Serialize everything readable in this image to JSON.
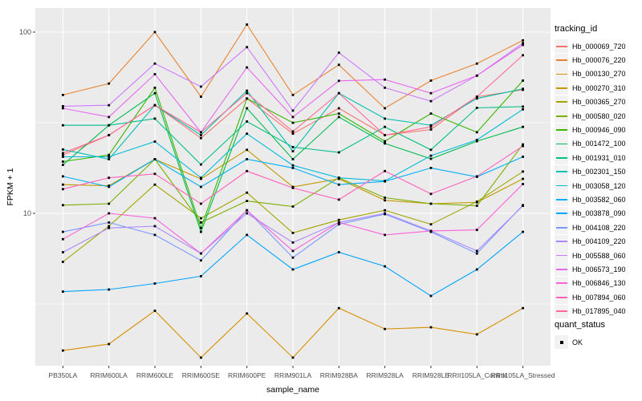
{
  "axes": {
    "y_tick_labels": [
      "100",
      "10"
    ],
    "x_title": "sample_name",
    "y_title": "FPKM + 1"
  },
  "legend": {
    "title": "tracking_id"
  },
  "legend2": {
    "title": "quant_status",
    "items": [
      {
        "label": "OK",
        "shape": "black-square"
      }
    ]
  },
  "chart_data": {
    "type": "line",
    "title": "",
    "xlabel": "sample_name",
    "ylabel": "FPKM + 1",
    "y_scale": "log10",
    "ylim": [
      1.4,
      135
    ],
    "y_major_ticks": [
      100,
      10
    ],
    "y_minor_ticks": [
      31.623,
      3.1623
    ],
    "grid": true,
    "panel_background": "#EBEBEB",
    "grid_color": "#FFFFFF",
    "point_shape": "filled-black-square",
    "legend_position": "right",
    "categories": [
      "PB350LA",
      "RRIM600LA",
      "RRIM600LE",
      "RRIM600SE",
      "RRIM600PE",
      "RRIM901LA",
      "RRIM928BA",
      "RRIM928LA",
      "RRIM928LE",
      "RRII105LA_Control",
      "RRII105LA_Stressed"
    ],
    "series": [
      {
        "name": "Hb_000069_720",
        "color": "#F8766D",
        "values": [
          21,
          27,
          39.5,
          26,
          43,
          27.5,
          38,
          27,
          29,
          44,
          48
        ]
      },
      {
        "name": "Hb_000076_220",
        "color": "#EA8331",
        "values": [
          45,
          52,
          100,
          44,
          110,
          45,
          66,
          38,
          54,
          67,
          90
        ]
      },
      {
        "name": "Hb_000130_270",
        "color": "#D89000",
        "values": [
          1.75,
          1.9,
          2.9,
          1.6,
          2.8,
          1.6,
          3,
          2.3,
          2.35,
          2.15,
          3
        ]
      },
      {
        "name": "Hb_000270_310",
        "color": "#C09B00",
        "values": [
          14.4,
          14.2,
          19.9,
          15.5,
          22.4,
          14,
          15.5,
          11.8,
          11.3,
          11.5,
          15.5
        ]
      },
      {
        "name": "Hb_000365_270",
        "color": "#A3A500",
        "values": [
          5.4,
          8.5,
          14.4,
          9.4,
          13,
          7.8,
          9.2,
          10.4,
          8.7,
          11.6,
          17
        ]
      },
      {
        "name": "Hb_000580_020",
        "color": "#7CAE00",
        "values": [
          11.1,
          11.3,
          19.9,
          8.9,
          11.7,
          10.9,
          15.7,
          12.2,
          11.3,
          11,
          24
        ]
      },
      {
        "name": "Hb_000946_090",
        "color": "#39B600",
        "values": [
          19.3,
          21,
          49.3,
          8.3,
          43,
          31.6,
          35.5,
          25,
          35.5,
          28,
          54
        ]
      },
      {
        "name": "Hb_001472_100",
        "color": "#00BB4E",
        "values": [
          18.5,
          30.6,
          46,
          7.9,
          38,
          19.9,
          34,
          24.3,
          20,
          25,
          30
        ]
      },
      {
        "name": "Hb_001931_010",
        "color": "#00C087",
        "values": [
          30.6,
          30.6,
          33.3,
          18.6,
          32.1,
          23.2,
          21.7,
          30,
          22.4,
          38.2,
          38.8
        ]
      },
      {
        "name": "Hb_002301_150",
        "color": "#00C0AF",
        "values": [
          22.5,
          19.9,
          39.5,
          27,
          47.5,
          22,
          46,
          33.3,
          30.6,
          43,
          48.6
        ]
      },
      {
        "name": "Hb_003058_120",
        "color": "#00BCD8",
        "values": [
          20.5,
          20.5,
          24.9,
          15.7,
          27.5,
          18.4,
          15.7,
          15.1,
          20.8,
          25.4,
          37.5
        ]
      },
      {
        "name": "Hb_003582_060",
        "color": "#00B0F6",
        "values": [
          16,
          14,
          19.9,
          14,
          19.9,
          17.8,
          14.4,
          15,
          17.8,
          15.9,
          20.5
        ]
      },
      {
        "name": "Hb_003878_090",
        "color": "#00A5FF",
        "values": [
          3.7,
          3.8,
          4.1,
          4.5,
          7.6,
          4.9,
          6.1,
          5.1,
          3.5,
          4.9,
          7.9
        ]
      },
      {
        "name": "Hb_004108_220",
        "color": "#7997FF",
        "values": [
          7.9,
          8.9,
          7.6,
          5.5,
          10.4,
          5.7,
          8.7,
          9.9,
          7.9,
          6,
          11.1
        ]
      },
      {
        "name": "Hb_004109_220",
        "color": "#AC88FF",
        "values": [
          6.1,
          8.3,
          8.5,
          6,
          10,
          6.9,
          8.9,
          10,
          8,
          6.2,
          11
        ]
      },
      {
        "name": "Hb_005588_060",
        "color": "#CF78FF",
        "values": [
          39,
          39.5,
          67,
          50,
          82.6,
          36.9,
          77,
          49.3,
          41.6,
          57.5,
          87
        ]
      },
      {
        "name": "Hb_006573_190",
        "color": "#E967EF",
        "values": [
          38,
          34,
          58.6,
          28,
          63.8,
          34,
          53.8,
          54.7,
          46,
          57.5,
          85
        ]
      },
      {
        "name": "Hb_006846_130",
        "color": "#FA61DA",
        "values": [
          7.2,
          10,
          9.4,
          6,
          10.4,
          6.2,
          8.9,
          7.6,
          8,
          8.1,
          14.5
        ]
      },
      {
        "name": "Hb_007894_060",
        "color": "#FF62BB",
        "values": [
          13.6,
          15.7,
          16.5,
          11.3,
          17.1,
          13.8,
          11.9,
          17.1,
          12.8,
          16,
          23.5
        ]
      },
      {
        "name": "Hb_017895_040",
        "color": "#FF6B96",
        "values": [
          21.5,
          27,
          39.5,
          28,
          46,
          28.3,
          46,
          27,
          30,
          44,
          74.5
        ]
      }
    ]
  }
}
